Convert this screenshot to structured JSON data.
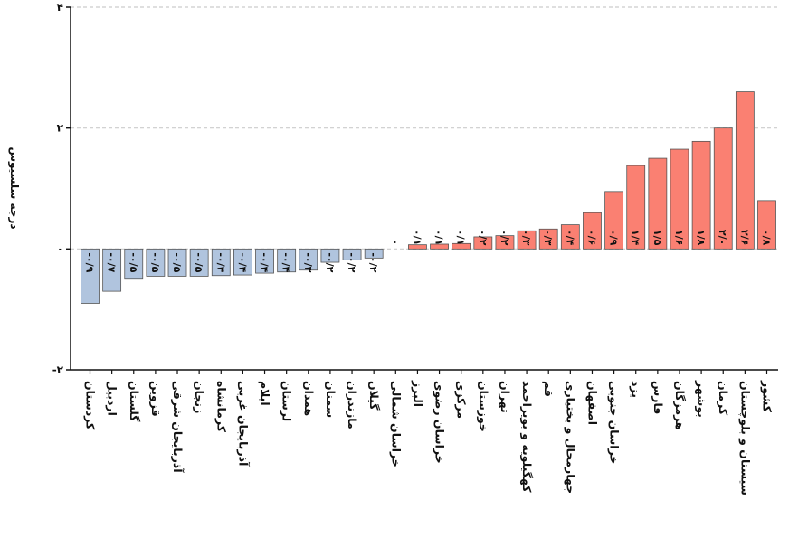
{
  "chart_data": {
    "type": "bar",
    "ylabel": "درجه سلسیوس",
    "ylim": [
      -2,
      4
    ],
    "yticks": [
      -2,
      0,
      2,
      4
    ],
    "ytick_labels": [
      "-۲",
      "۰",
      "۲",
      "۴"
    ],
    "grid": "horizontal dashed",
    "colors": {
      "negative": "#b0c4de",
      "positive": "#fa8072",
      "grid": "#cccccc"
    },
    "categories": [
      "کردستان",
      "اردبیل",
      "گلستان",
      "قزوین",
      "آذربایجان شرقی",
      "زنجان",
      "کرمانشاه",
      "آذربایجان غربی",
      "ایلام",
      "لرستان",
      "همدان",
      "سمنان",
      "مازندران",
      "گیلان",
      "خراسان شمالی",
      "البرز",
      "خراسان رضوی",
      "مرکزی",
      "خوزستان",
      "تهران",
      "کهگیلویه و بویراحمد",
      "قم",
      "چهارمحال و بختیاری",
      "اصفهان",
      "خراسان جنوبی",
      "یزد",
      "فارس",
      "هرمزگان",
      "بوشهر",
      "کرمان",
      "سیستان و بلوچستان",
      "کشور"
    ],
    "values": [
      -0.9,
      -0.7,
      -0.5,
      -0.45,
      -0.45,
      -0.45,
      -0.44,
      -0.43,
      -0.4,
      -0.38,
      -0.35,
      -0.22,
      -0.18,
      -0.15,
      0,
      0.07,
      0.08,
      0.09,
      0.2,
      0.22,
      0.3,
      0.33,
      0.4,
      0.6,
      0.95,
      1.38,
      1.5,
      1.65,
      1.78,
      2.0,
      2.6,
      0.8
    ],
    "value_labels": [
      "-۰/۹",
      "-۰/۷",
      "-۰/۵",
      "-۰/۵",
      "-۰/۵",
      "-۰/۵",
      "-۰/۴",
      "-۰/۴",
      "-۰/۴",
      "-۰/۴",
      "-۰/۳",
      "-۰/۲",
      "-۰/۲",
      "-۰/۲",
      "۰",
      "۰/۱",
      "۰/۱",
      "۰/۱",
      "۰/۲",
      "۰/۲",
      "۰/۳",
      "۰/۳",
      "۰/۴",
      "۰/۶",
      "۰/۹",
      "۱/۴",
      "۱/۵",
      "۱/۶",
      "۱/۸",
      "۲/۰",
      "۲/۶",
      "۰/۸"
    ]
  }
}
